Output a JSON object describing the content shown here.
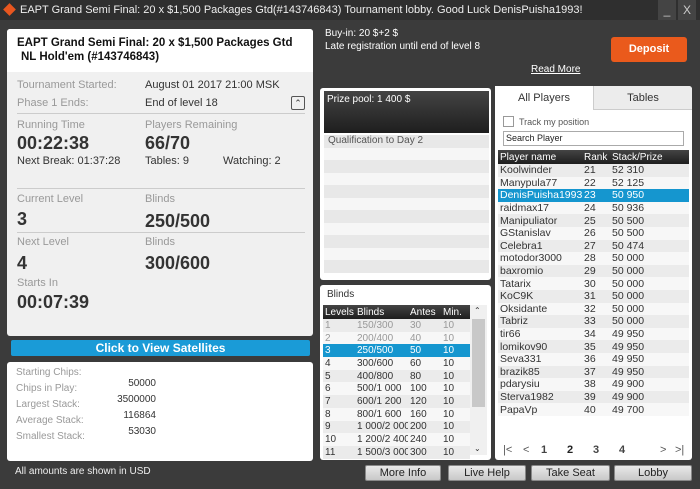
{
  "window": {
    "title": "EAPT Grand Semi Final: 20 x $1,500 Packages Gtd(#143746843) Tournament lobby. Good Luck DenisPuisha1993!",
    "minimize": "_",
    "close": "X"
  },
  "tournament": {
    "title_line1": "EAPT Grand Semi Final: 20 x $1,500 Packages Gtd",
    "title_line2": "NL Hold'em (#143746843)",
    "started_label": "Tournament Started:",
    "started_value": "August 01 2017  21:00 MSK",
    "phase_label": "Phase 1 Ends:",
    "phase_value": "End of level 18",
    "running_label": "Running Time",
    "running_value": "00:22:38",
    "next_break": "Next Break: 01:37:28",
    "players_label": "Players Remaining",
    "players_value": "66/70",
    "tables": "Tables: 9",
    "watching": "Watching: 2",
    "current_level_label": "Current Level",
    "current_level": "3",
    "blinds_label": "Blinds",
    "current_blinds": "250/500",
    "next_level_label": "Next Level",
    "next_level": "4",
    "next_blinds_label": "Blinds",
    "next_blinds": "300/600",
    "starts_in_label": "Starts In",
    "starts_in": "00:07:39"
  },
  "satellites_button": "Click to View Satellites",
  "stats": [
    {
      "label": "Starting Chips:",
      "value": "50000"
    },
    {
      "label": "Chips in Play:",
      "value": "3500000"
    },
    {
      "label": "Largest Stack:",
      "value": "116864"
    },
    {
      "label": "Average Stack:",
      "value": "53030"
    },
    {
      "label": "Smallest Stack:",
      "value": ""
    }
  ],
  "footer": "All amounts are shown in USD",
  "buyin": {
    "line1": "Buy-in: 20 $+2 $",
    "line2": "Late registration until end of level 8"
  },
  "deposit": "Deposit",
  "read_more": "Read More",
  "prize": {
    "header": "Prize pool: 1 400 $",
    "rows": [
      "Qualification to Day 2"
    ]
  },
  "blinds": {
    "title": "Blinds",
    "columns": [
      "Levels",
      "Blinds",
      "Antes",
      "Min."
    ],
    "rows": [
      [
        "1",
        "150/300",
        "30",
        "10"
      ],
      [
        "2",
        "200/400",
        "40",
        "10"
      ],
      [
        "3",
        "250/500",
        "50",
        "10"
      ],
      [
        "4",
        "300/600",
        "60",
        "10"
      ],
      [
        "5",
        "400/800",
        "80",
        "10"
      ],
      [
        "6",
        "500/1 000",
        "100",
        "10"
      ],
      [
        "7",
        "600/1 200",
        "120",
        "10"
      ],
      [
        "8",
        "800/1 600",
        "160",
        "10"
      ],
      [
        "9",
        "1 000/2 000",
        "200",
        "10"
      ],
      [
        "10",
        "1 200/2 400",
        "240",
        "10"
      ],
      [
        "11",
        "1 500/3 000",
        "300",
        "10"
      ]
    ],
    "current_level": "3"
  },
  "players": {
    "tabs": [
      "All Players",
      "Tables"
    ],
    "active_tab": "All Players",
    "track_label": "Track my position",
    "search_value": "Search Player",
    "columns": [
      "Player name",
      "Rank",
      "Stack/Prize"
    ],
    "rows": [
      [
        "Koolwinder",
        "21",
        "52 310"
      ],
      [
        "Manypula77",
        "22",
        "52 125"
      ],
      [
        "DenisPuisha1993",
        "23",
        "50 950"
      ],
      [
        "raidmax17",
        "24",
        "50 936"
      ],
      [
        "Manipuliator",
        "25",
        "50 500"
      ],
      [
        "GStanislav",
        "26",
        "50 500"
      ],
      [
        "Celebra1",
        "27",
        "50 474"
      ],
      [
        "motodor3000",
        "28",
        "50 000"
      ],
      [
        "baxromio",
        "29",
        "50 000"
      ],
      [
        "Tatarix",
        "30",
        "50 000"
      ],
      [
        "KoC9K",
        "31",
        "50 000"
      ],
      [
        "Oksidante",
        "32",
        "50 000"
      ],
      [
        "Tabriz",
        "33",
        "50 000"
      ],
      [
        "tir66",
        "34",
        "49 950"
      ],
      [
        "lomikov90",
        "35",
        "49 950"
      ],
      [
        "Seva331",
        "36",
        "49 950"
      ],
      [
        "brazik85",
        "37",
        "49 950"
      ],
      [
        "pdarysiu",
        "38",
        "49 900"
      ],
      [
        "Sterva1982",
        "39",
        "49 900"
      ],
      [
        "PapaVp",
        "40",
        "49 700"
      ]
    ],
    "selected": "DenisPuisha1993",
    "pages": [
      "1",
      "2",
      "3",
      "4"
    ],
    "current_page": "2",
    "first": "|<",
    "prev": "<",
    "next": ">",
    "last": ">|"
  },
  "buttons": {
    "more_info": "More Info",
    "live_help": "Live Help",
    "take_seat": "Take Seat",
    "lobby": "Lobby"
  },
  "colors": {
    "accent": "#1596cf",
    "deposit": "#ea5a1c"
  }
}
